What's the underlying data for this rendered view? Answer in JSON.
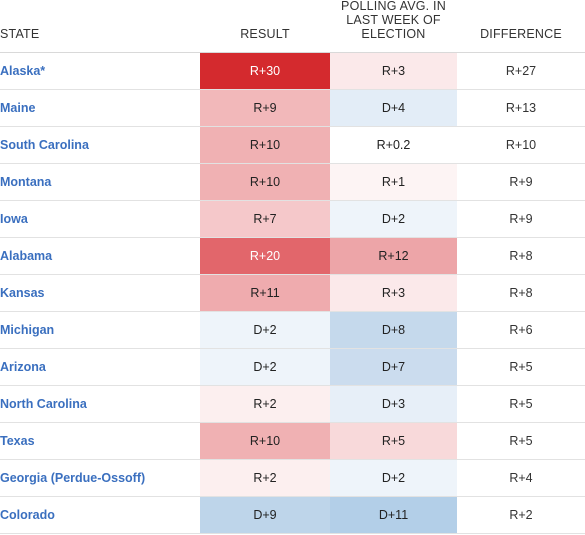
{
  "headers": {
    "state": "STATE",
    "result": "RESULT",
    "poll_line1": "POLLING AVG. IN",
    "poll_line2": "LAST WEEK OF",
    "poll_line3": "ELECTION",
    "difference": "DIFFERENCE"
  },
  "rows": [
    {
      "state": "Alaska*",
      "result": "R+30",
      "result_color": "#d42a2e",
      "result_text_color": "#ffffff",
      "poll": "R+3",
      "poll_color": "#fbe9ea",
      "diff": "R+27"
    },
    {
      "state": "Maine",
      "result": "R+9",
      "result_color": "#f2b8ba",
      "result_text_color": "#222222",
      "poll": "D+4",
      "poll_color": "#e3edf7",
      "diff": "R+13"
    },
    {
      "state": "South Carolina",
      "result": "R+10",
      "result_color": "#f0b1b3",
      "result_text_color": "#222222",
      "poll": "R+0.2",
      "poll_color": "#ffffff",
      "diff": "R+10"
    },
    {
      "state": "Montana",
      "result": "R+10",
      "result_color": "#f0b1b3",
      "result_text_color": "#222222",
      "poll": "R+1",
      "poll_color": "#fdf4f4",
      "diff": "R+9"
    },
    {
      "state": "Iowa",
      "result": "R+7",
      "result_color": "#f5c8ca",
      "result_text_color": "#222222",
      "poll": "D+2",
      "poll_color": "#eef4fa",
      "diff": "R+9"
    },
    {
      "state": "Alabama",
      "result": "R+20",
      "result_color": "#e2666b",
      "result_text_color": "#ffffff",
      "poll": "R+12",
      "poll_color": "#eda5a8",
      "diff": "R+8"
    },
    {
      "state": "Kansas",
      "result": "R+11",
      "result_color": "#efabae",
      "result_text_color": "#222222",
      "poll": "R+3",
      "poll_color": "#fbe9ea",
      "diff": "R+8"
    },
    {
      "state": "Michigan",
      "result": "D+2",
      "result_color": "#eef4fa",
      "result_text_color": "#222222",
      "poll": "D+8",
      "poll_color": "#c5d9ec",
      "diff": "R+6"
    },
    {
      "state": "Arizona",
      "result": "D+2",
      "result_color": "#eef4fa",
      "result_text_color": "#222222",
      "poll": "D+7",
      "poll_color": "#cbdcee",
      "diff": "R+5"
    },
    {
      "state": "North Carolina",
      "result": "R+2",
      "result_color": "#fcefef",
      "result_text_color": "#222222",
      "poll": "D+3",
      "poll_color": "#e7eff8",
      "diff": "R+5"
    },
    {
      "state": "Texas",
      "result": "R+10",
      "result_color": "#f0b1b3",
      "result_text_color": "#222222",
      "poll": "R+5",
      "poll_color": "#f8d9da",
      "diff": "R+5"
    },
    {
      "state": "Georgia (Perdue-Ossoff)",
      "result": "R+2",
      "result_color": "#fcefef",
      "result_text_color": "#222222",
      "poll": "D+2",
      "poll_color": "#eef4fa",
      "diff": "R+4"
    },
    {
      "state": "Colorado",
      "result": "D+9",
      "result_color": "#bed5ea",
      "result_text_color": "#222222",
      "poll": "D+11",
      "poll_color": "#b3cfe8",
      "diff": "R+2"
    }
  ]
}
